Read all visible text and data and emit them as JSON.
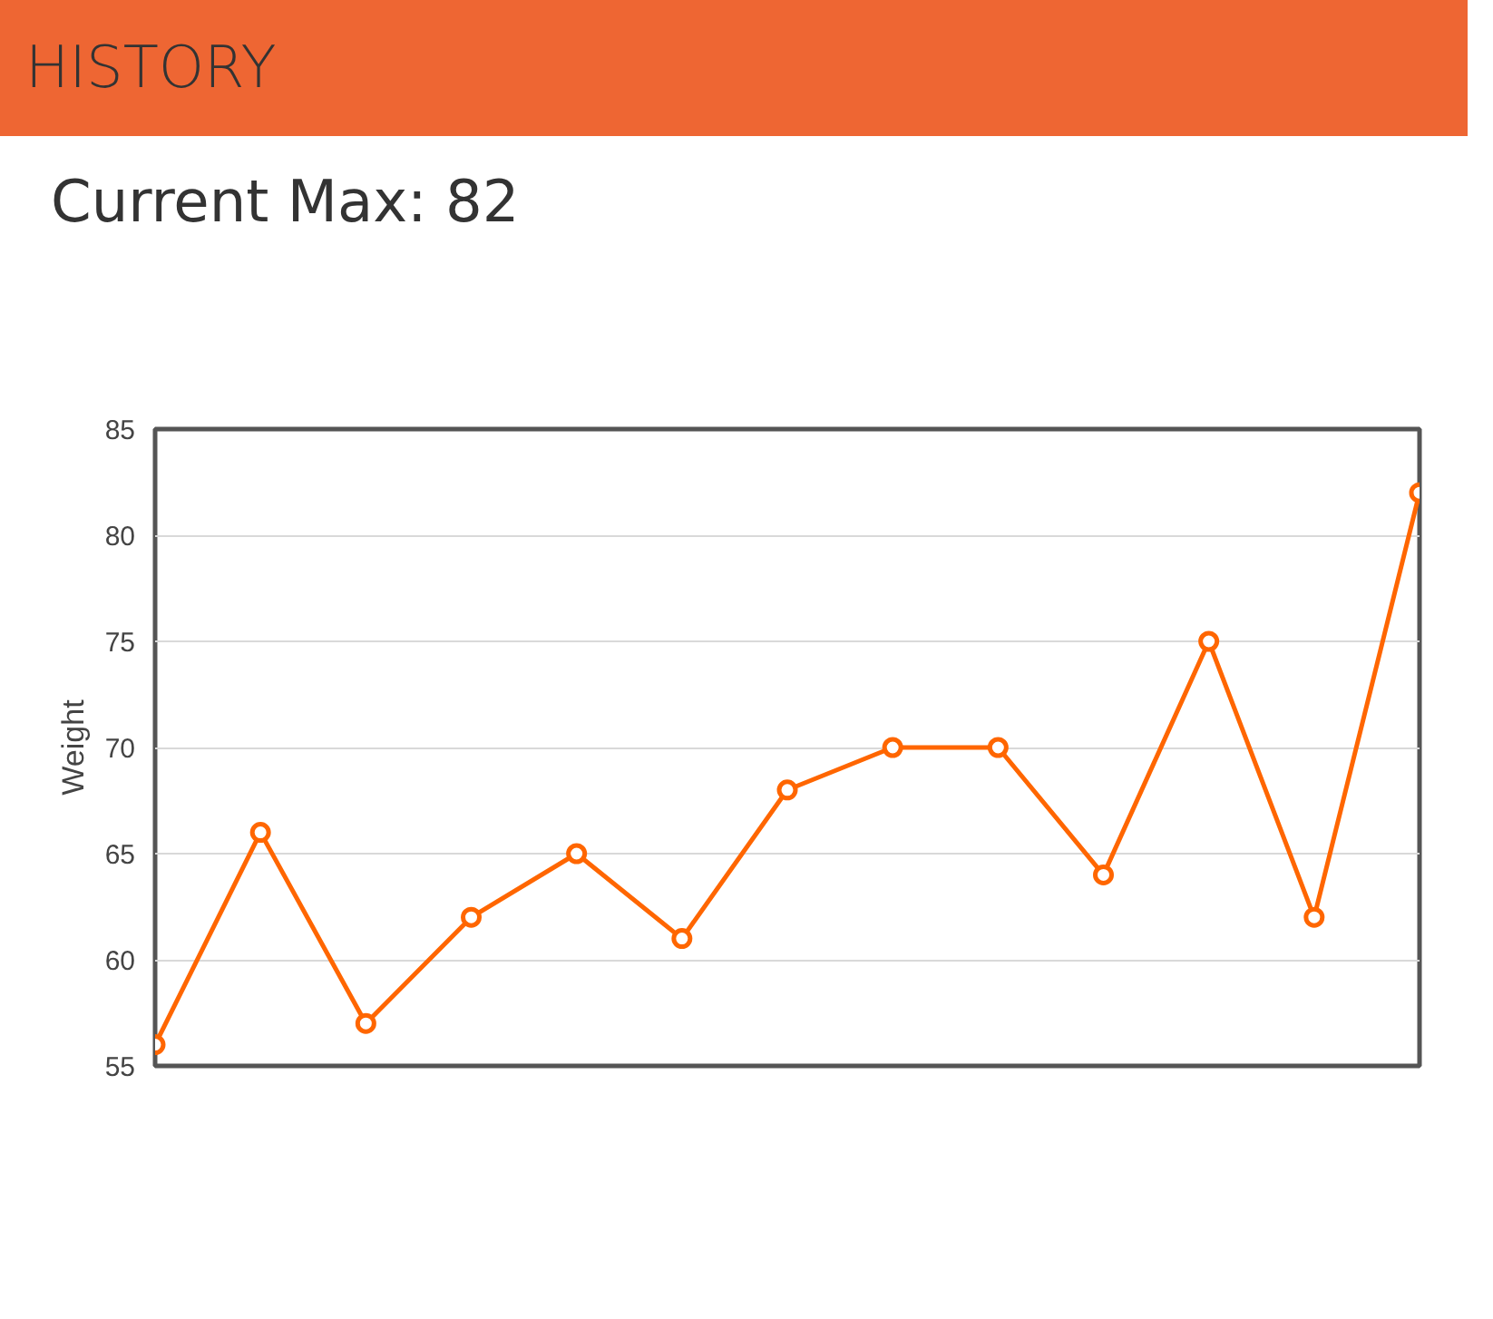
{
  "chart_data": {
    "type": "line",
    "title": "HISTORY",
    "subtitle": "Current Max: 82",
    "ylabel": "Weight",
    "categories": [
      null,
      null,
      null,
      null,
      null,
      null,
      null,
      null,
      null,
      null,
      null,
      null,
      null
    ],
    "series": [
      {
        "color": "#ff6600",
        "values": [
          56,
          66,
          57,
          62,
          65,
          61,
          68,
          70,
          70,
          64,
          75,
          62,
          82
        ]
      }
    ],
    "ylim": [
      55,
      85
    ],
    "yticks": [
      55,
      60,
      65,
      70,
      75,
      80,
      85
    ],
    "grid": "y",
    "marker": "circle",
    "line_style": "solid",
    "tick_labels": "y"
  }
}
